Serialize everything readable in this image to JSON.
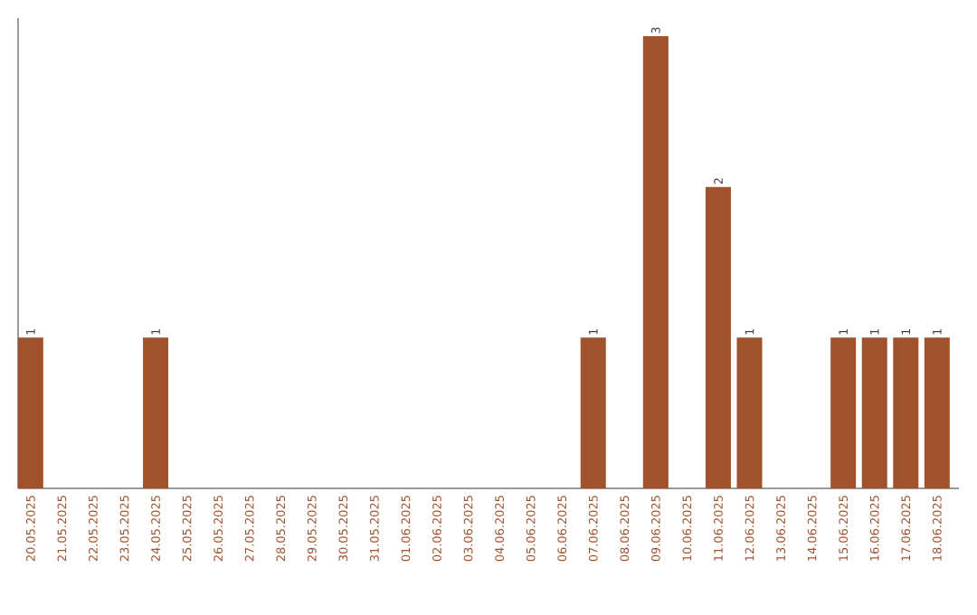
{
  "chart_data": {
    "type": "bar",
    "color": "#a0522d",
    "categories": [
      "20.05.2025",
      "21.05.2025",
      "22.05.2025",
      "23.05.2025",
      "24.05.2025",
      "25.05.2025",
      "26.05.2025",
      "27.05.2025",
      "28.05.2025",
      "29.05.2025",
      "30.05.2025",
      "31.05.2025",
      "01.06.2025",
      "02.06.2025",
      "03.06.2025",
      "04.06.2025",
      "05.06.2025",
      "06.06.2025",
      "07.06.2025",
      "08.06.2025",
      "09.06.2025",
      "10.06.2025",
      "11.06.2025",
      "12.06.2025",
      "13.06.2025",
      "14.06.2025",
      "15.06.2025",
      "16.06.2025",
      "17.06.2025",
      "18.06.2025"
    ],
    "values": [
      1,
      0,
      0,
      0,
      1,
      0,
      0,
      0,
      0,
      0,
      0,
      0,
      0,
      0,
      0,
      0,
      0,
      0,
      1,
      0,
      3,
      0,
      2,
      1,
      0,
      0,
      1,
      1,
      1,
      1
    ],
    "value_labels": [
      "1",
      null,
      null,
      null,
      "1",
      null,
      null,
      null,
      null,
      null,
      null,
      null,
      null,
      null,
      null,
      null,
      null,
      null,
      "1",
      null,
      "3",
      null,
      "2",
      "1",
      null,
      null,
      "1",
      "1",
      "1",
      "1"
    ],
    "tick_labels": "x"
  }
}
